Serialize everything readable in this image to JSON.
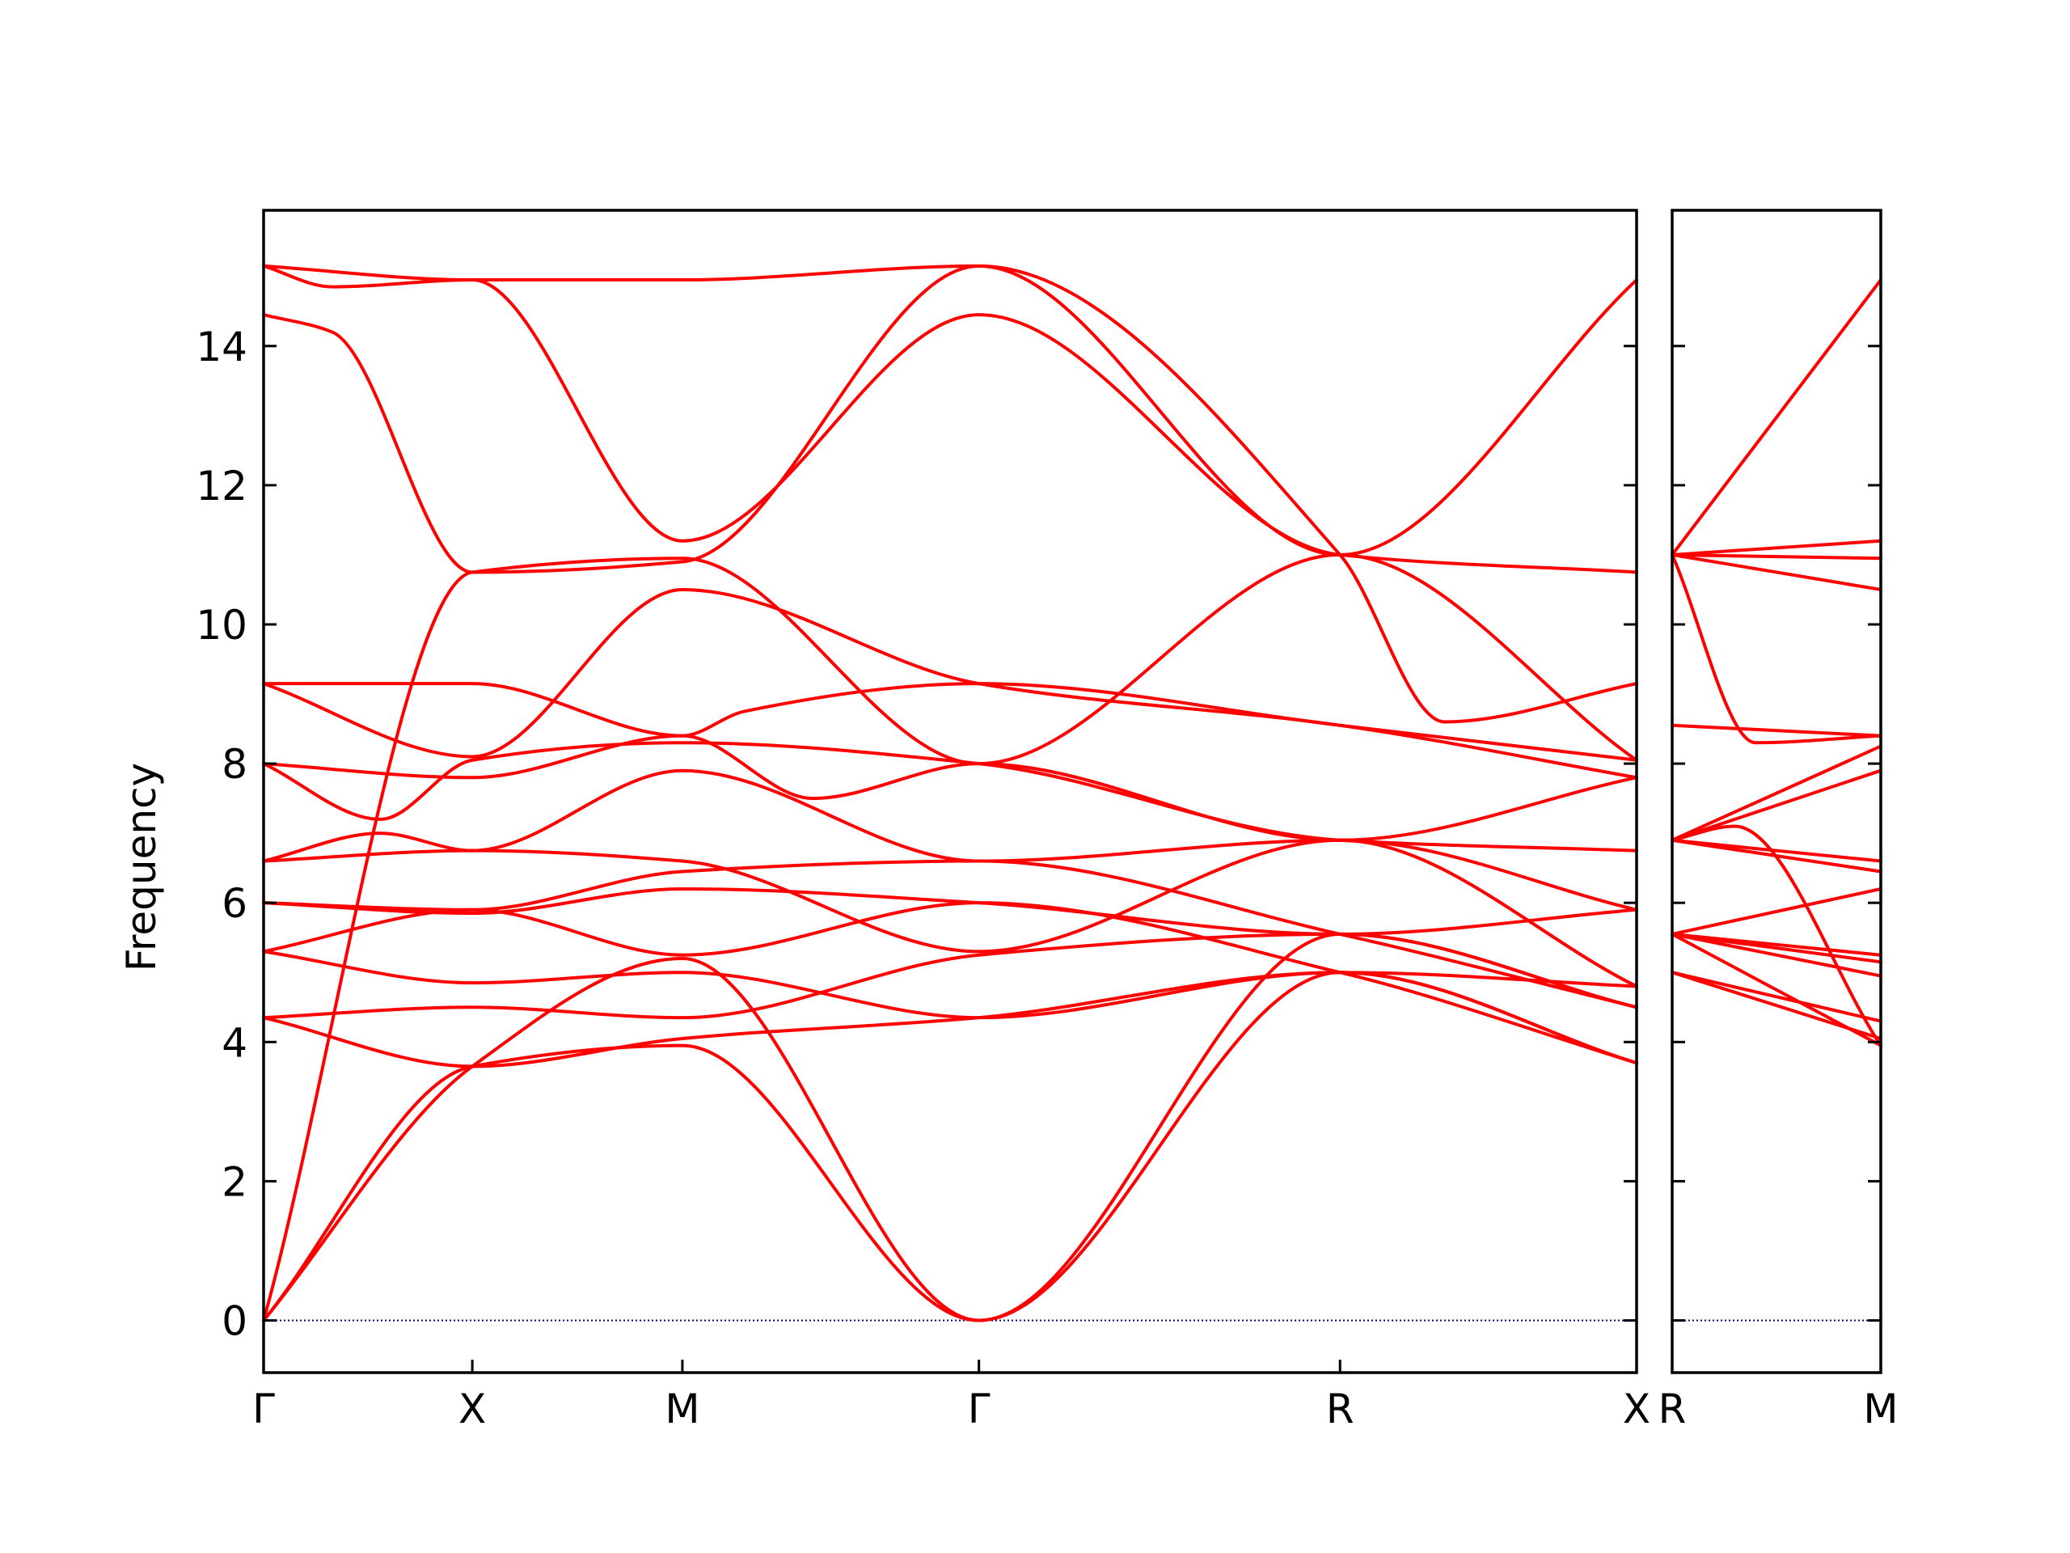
{
  "chart_data": {
    "type": "line",
    "ylabel": "Frequency",
    "xlabel": "",
    "ylim": [
      -0.75,
      15.95
    ],
    "yticks": [
      0,
      2,
      4,
      6,
      8,
      10,
      12,
      14
    ],
    "line_color": "#ff0000",
    "zero_line_color": "#00008b",
    "grid": false,
    "panels": [
      {
        "xlim": [
          0,
          1
        ],
        "xticks": [
          {
            "x": 0.0,
            "label": "Γ"
          },
          {
            "x": 0.152,
            "label": "X"
          },
          {
            "x": 0.305,
            "label": "M"
          },
          {
            "x": 0.521,
            "label": "Γ"
          },
          {
            "x": 0.784,
            "label": "R"
          },
          {
            "x": 1.0,
            "label": "X"
          }
        ],
        "series": [
          {
            "x": [
              0,
              0.152,
              0.305,
              0.521,
              0.784,
              1.0
            ],
            "y": [
              15.15,
              14.95,
              14.95,
              15.15,
              11.0,
              14.95
            ]
          },
          {
            "x": [
              0,
              0.05,
              0.152,
              0.305,
              0.521,
              0.784,
              1.0
            ],
            "y": [
              15.15,
              14.85,
              14.95,
              11.2,
              14.45,
              11.0,
              10.75
            ]
          },
          {
            "x": [
              0,
              0.05,
              0.152,
              0.305,
              0.521,
              0.784,
              0.86,
              1.0
            ],
            "y": [
              14.45,
              14.2,
              10.75,
              10.9,
              15.15,
              11.0,
              8.6,
              9.15
            ]
          },
          {
            "x": [
              0,
              0.152,
              0.305,
              0.521,
              0.784,
              1.0
            ],
            "y": [
              0,
              10.75,
              10.95,
              8.0,
              11.0,
              8.05
            ]
          },
          {
            "x": [
              0,
              0.152,
              0.305,
              0.35,
              0.521,
              0.784,
              1.0
            ],
            "y": [
              9.15,
              9.15,
              8.4,
              8.75,
              9.15,
              8.55,
              8.05
            ]
          },
          {
            "x": [
              0,
              0.152,
              0.305,
              0.521,
              0.784,
              1.0
            ],
            "y": [
              9.15,
              8.1,
              10.5,
              9.15,
              8.55,
              7.8
            ]
          },
          {
            "x": [
              0,
              0.152,
              0.305,
              0.4,
              0.521,
              0.784,
              1.0
            ],
            "y": [
              8.0,
              7.8,
              8.4,
              7.5,
              8.0,
              6.9,
              7.8
            ]
          },
          {
            "x": [
              0,
              0.085,
              0.152,
              0.305,
              0.521,
              0.784,
              1.0
            ],
            "y": [
              8.0,
              7.2,
              8.05,
              8.3,
              8.0,
              6.9,
              6.75
            ]
          },
          {
            "x": [
              0,
              0.085,
              0.152,
              0.305,
              0.521,
              0.784,
              1.0
            ],
            "y": [
              6.6,
              7.0,
              6.75,
              7.9,
              6.6,
              6.9,
              5.9
            ]
          },
          {
            "x": [
              0,
              0.152,
              0.305,
              0.521,
              0.784,
              1.0
            ],
            "y": [
              6.6,
              6.75,
              6.6,
              5.3,
              6.9,
              4.8
            ]
          },
          {
            "x": [
              0,
              0.152,
              0.305,
              0.521,
              0.784,
              1.0
            ],
            "y": [
              6.0,
              5.9,
              6.45,
              6.6,
              5.55,
              4.5
            ]
          },
          {
            "x": [
              0,
              0.152,
              0.305,
              0.521,
              0.784,
              1.0
            ],
            "y": [
              6.0,
              5.85,
              6.2,
              6.0,
              5.55,
              5.9
            ]
          },
          {
            "x": [
              0,
              0.152,
              0.305,
              0.521,
              0.784,
              1.0
            ],
            "y": [
              5.3,
              5.9,
              5.25,
              6.0,
              5.0,
              3.7
            ]
          },
          {
            "x": [
              0,
              0.152,
              0.305,
              0.521,
              0.784,
              1.0
            ],
            "y": [
              5.3,
              4.85,
              5.0,
              4.35,
              5.0,
              3.7
            ]
          },
          {
            "x": [
              0,
              0.152,
              0.305,
              0.521,
              0.784,
              1.0
            ],
            "y": [
              4.35,
              4.5,
              4.35,
              5.25,
              5.55,
              4.5
            ]
          },
          {
            "x": [
              0,
              0.152,
              0.305,
              0.521,
              0.784,
              1.0
            ],
            "y": [
              4.35,
              3.65,
              4.05,
              4.35,
              5.0,
              4.8
            ]
          },
          {
            "x": [
              0,
              0.152,
              0.305,
              0.521,
              0.784,
              1.0
            ],
            "y": [
              0,
              3.65,
              3.95,
              0,
              5.0,
              3.7
            ]
          },
          {
            "x": [
              0,
              0.152,
              0.305,
              0.521,
              0.784,
              1.0
            ],
            "y": [
              0,
              3.65,
              5.2,
              0,
              5.55,
              4.5
            ]
          }
        ]
      },
      {
        "xlim": [
          0,
          1
        ],
        "xticks": [
          {
            "x": 0.0,
            "label": "R"
          },
          {
            "x": 1.0,
            "label": "M"
          }
        ],
        "series": [
          {
            "x": [
              0,
              1
            ],
            "y": [
              11.0,
              14.95
            ]
          },
          {
            "x": [
              0,
              1
            ],
            "y": [
              11.0,
              11.2
            ]
          },
          {
            "x": [
              0,
              1
            ],
            "y": [
              11.0,
              10.95
            ]
          },
          {
            "x": [
              0,
              1
            ],
            "y": [
              11.0,
              10.5
            ]
          },
          {
            "x": [
              0,
              0.4,
              1
            ],
            "y": [
              11.0,
              8.3,
              8.4
            ]
          },
          {
            "x": [
              0,
              1
            ],
            "y": [
              8.55,
              8.4
            ]
          },
          {
            "x": [
              0,
              1
            ],
            "y": [
              6.9,
              8.25
            ]
          },
          {
            "x": [
              0,
              1
            ],
            "y": [
              6.9,
              7.9
            ]
          },
          {
            "x": [
              0,
              1
            ],
            "y": [
              6.9,
              6.6
            ]
          },
          {
            "x": [
              0,
              1
            ],
            "y": [
              6.9,
              6.45
            ]
          },
          {
            "x": [
              0,
              1
            ],
            "y": [
              5.55,
              6.2
            ]
          },
          {
            "x": [
              0,
              1
            ],
            "y": [
              5.55,
              5.25
            ]
          },
          {
            "x": [
              0,
              1
            ],
            "y": [
              5.55,
              5.15
            ]
          },
          {
            "x": [
              0,
              1
            ],
            "y": [
              5.55,
              4.95
            ]
          },
          {
            "x": [
              0,
              1
            ],
            "y": [
              5.0,
              4.3
            ]
          },
          {
            "x": [
              0,
              1
            ],
            "y": [
              5.0,
              4.05
            ]
          },
          {
            "x": [
              0,
              0.3,
              1
            ],
            "y": [
              6.9,
              7.1,
              3.95
            ]
          },
          {
            "x": [
              0,
              1
            ],
            "y": [
              5.55,
              3.95
            ]
          }
        ]
      }
    ]
  }
}
